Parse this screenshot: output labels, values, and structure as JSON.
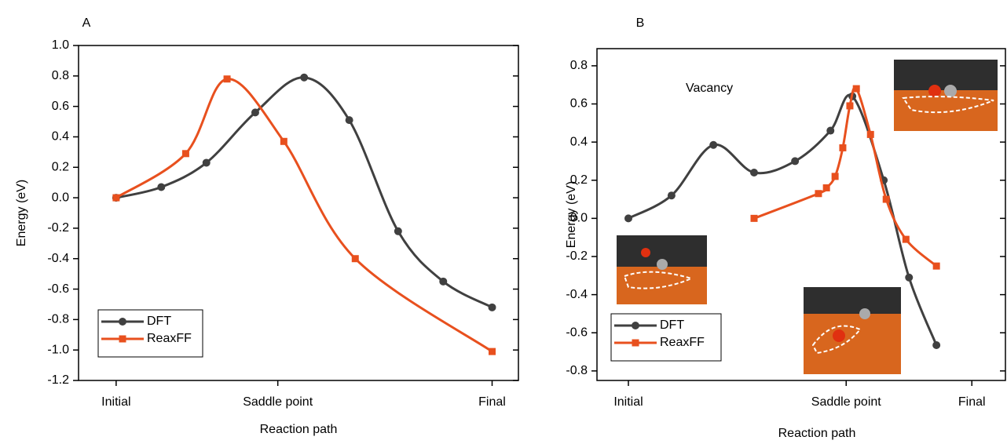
{
  "chart_data": [
    {
      "type": "line",
      "panel_label": "A",
      "xlabel": "Reaction path",
      "ylabel": "Energy (eV)",
      "xlim": [
        -0.1,
        1.07
      ],
      "ylim": [
        -1.2,
        1.0
      ],
      "xticks": [
        {
          "value": 0,
          "label": "Initial"
        },
        {
          "value": 0.43,
          "label": "Saddle point"
        },
        {
          "value": 1,
          "label": "Final"
        }
      ],
      "yticks": [
        -1.2,
        {
          "value": -1.0,
          "label": "-1.0"
        },
        -0.8,
        -0.6,
        -0.4,
        -0.2,
        {
          "value": 0,
          "label": "0.0"
        },
        0.2,
        0.4,
        0.6,
        0.8,
        {
          "value": 1.0,
          "label": "1.0"
        }
      ],
      "legend": "lower left",
      "series": [
        {
          "name": "DFT",
          "color": "#404040",
          "marker": "circle",
          "x": [
            0,
            0.12,
            0.24,
            0.37,
            0.5,
            0.62,
            0.75,
            0.87,
            1
          ],
          "values": [
            0,
            0.07,
            0.23,
            0.56,
            0.79,
            0.51,
            -0.22,
            -0.55,
            -0.72
          ]
        },
        {
          "name": "ReaxFF",
          "color": "#e8501e",
          "marker": "square",
          "x": [
            0,
            0.185,
            0.295,
            0.446,
            0.636,
            1
          ],
          "values": [
            0,
            0.29,
            0.78,
            0.37,
            -0.4,
            -1.01
          ]
        }
      ]
    },
    {
      "type": "line",
      "panel_label": "B",
      "annotation": "Vacancy",
      "xlabel": "Reaction path",
      "ylabel": "Energy (eV)",
      "xlim": [
        -0.102,
        1.224
      ],
      "ylim": [
        -0.85,
        0.89
      ],
      "xticks": [
        {
          "value": 0,
          "label": "Initial"
        },
        {
          "value": 0.707,
          "label": "Saddle point"
        },
        {
          "value": 1.115,
          "label": "Final"
        }
      ],
      "yticks": [
        -0.8,
        -0.6,
        -0.4,
        -0.2,
        {
          "value": 0,
          "label": "0.0"
        },
        0.2,
        0.4,
        0.6,
        0.8
      ],
      "legend": "lower left",
      "series": [
        {
          "name": "DFT",
          "color": "#404040",
          "marker": "circle",
          "x": [
            0,
            0.14,
            0.276,
            0.408,
            0.541,
            0.656,
            0.727,
            0.829,
            0.911,
            1
          ],
          "values": [
            0,
            0.12,
            0.385,
            0.24,
            0.3,
            0.46,
            0.64,
            0.2,
            -0.31,
            -0.665
          ]
        },
        {
          "name": "ReaxFF",
          "color": "#e8501e",
          "marker": "square",
          "x": [
            0.408,
            0.617,
            0.643,
            0.671,
            0.696,
            0.719,
            0.74,
            0.786,
            0.837,
            0.901,
            1
          ],
          "values": [
            0,
            0.13,
            0.16,
            0.22,
            0.37,
            0.59,
            0.68,
            0.44,
            0.1,
            -0.11,
            -0.25
          ]
        }
      ]
    }
  ]
}
